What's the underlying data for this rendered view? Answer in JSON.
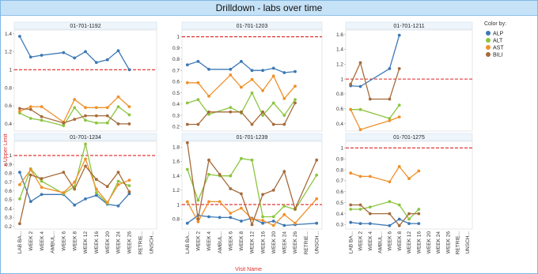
{
  "header": {
    "title": "Drilldown - labs over time"
  },
  "legend": {
    "title": "Color by:",
    "items": [
      {
        "label": "ALP",
        "color": "#3c78b5"
      },
      {
        "label": "ALT",
        "color": "#8cc540"
      },
      {
        "label": "AST",
        "color": "#f0902a"
      },
      {
        "label": "BILI",
        "color": "#a66b3a"
      }
    ]
  },
  "axes": {
    "ylabel": "x Upper Limit",
    "xlabel": "Visit Name"
  },
  "chart_data": {
    "type": "line",
    "categories": [
      "LAB BA...",
      "WEEK 2",
      "WEEK 4",
      "AMBUL...",
      "WEEK 6",
      "WEEK 8",
      "WEEK 12",
      "WEEK 16",
      "WEEK 20",
      "WEEK 24",
      "WEEK 26",
      "RETRIE...",
      "UNSCH..."
    ],
    "reference_line": 1,
    "panels": [
      {
        "title": "01-701-1192",
        "yticks": [
          0.4,
          0.6,
          0.8,
          1,
          1.2,
          1.4
        ],
        "ylim": [
          0.32,
          1.44
        ],
        "series": [
          {
            "name": "ALP",
            "values": [
              1.37,
              1.14,
              1.16,
              null,
              1.19,
              1.13,
              1.2,
              1.08,
              1.11,
              1.21,
              1.0,
              null,
              null
            ]
          },
          {
            "name": "ALT",
            "values": [
              0.52,
              0.46,
              0.44,
              null,
              0.38,
              0.58,
              0.44,
              0.41,
              0.41,
              0.59,
              0.5,
              null,
              null
            ]
          },
          {
            "name": "AST",
            "values": [
              0.54,
              0.59,
              0.59,
              null,
              0.42,
              0.67,
              0.58,
              0.58,
              0.58,
              0.7,
              0.59,
              null,
              null
            ]
          },
          {
            "name": "BILI",
            "values": [
              0.57,
              0.56,
              0.48,
              null,
              0.41,
              0.45,
              0.49,
              0.49,
              0.49,
              0.4,
              0.4,
              null,
              null
            ]
          }
        ]
      },
      {
        "title": "01-701-1203",
        "yticks": [
          0.2,
          0.3,
          0.4,
          0.5,
          0.6,
          0.7,
          0.8,
          0.9,
          1
        ],
        "ylim": [
          0.16,
          1.06
        ],
        "series": [
          {
            "name": "ALP",
            "values": [
              0.75,
              0.78,
              0.71,
              null,
              0.71,
              0.78,
              0.7,
              0.7,
              0.72,
              0.68,
              0.69,
              null,
              null
            ]
          },
          {
            "name": "ALT",
            "values": [
              0.41,
              0.44,
              0.31,
              null,
              0.37,
              0.32,
              0.5,
              0.3,
              0.41,
              0.3,
              0.44,
              null,
              null
            ]
          },
          {
            "name": "AST",
            "values": [
              0.59,
              0.59,
              0.47,
              null,
              0.66,
              0.55,
              0.62,
              0.52,
              0.65,
              0.45,
              0.56,
              null,
              null
            ]
          },
          {
            "name": "BILI",
            "values": [
              0.22,
              0.22,
              0.33,
              null,
              0.33,
              0.33,
              0.22,
              0.33,
              0.22,
              0.22,
              0.41,
              null,
              null
            ]
          }
        ]
      },
      {
        "title": "01-701-1211",
        "yticks": [
          0.4,
          0.6,
          0.8,
          1,
          1.2,
          1.4,
          1.6
        ],
        "ylim": [
          0.3,
          1.66
        ],
        "series": [
          {
            "name": "ALP",
            "values": [
              0.91,
              0.9,
              null,
              null,
              1.14,
              1.59,
              null,
              null,
              null,
              null,
              null,
              null,
              null
            ]
          },
          {
            "name": "ALT",
            "values": [
              0.59,
              0.59,
              null,
              null,
              0.47,
              0.65,
              null,
              null,
              null,
              null,
              null,
              null,
              null
            ]
          },
          {
            "name": "AST",
            "values": [
              0.59,
              0.32,
              null,
              null,
              0.44,
              0.49,
              null,
              null,
              null,
              null,
              null,
              null,
              null
            ]
          },
          {
            "name": "BILI",
            "values": [
              0.93,
              1.22,
              0.73,
              null,
              0.73,
              1.14,
              null,
              null,
              null,
              null,
              null,
              null,
              null
            ]
          }
        ]
      },
      {
        "title": "01-701-1234",
        "yticks": [
          0.2,
          0.3,
          0.4,
          0.5,
          0.6,
          0.7,
          0.8,
          0.9,
          1
        ],
        "ylim": [
          0.17,
          1.16
        ],
        "series": [
          {
            "name": "ALP",
            "values": [
              0.81,
              0.48,
              0.56,
              null,
              0.56,
              0.44,
              0.51,
              0.55,
              0.45,
              0.43,
              0.57,
              null,
              null
            ]
          },
          {
            "name": "ALT",
            "values": [
              0.51,
              0.85,
              0.71,
              null,
              0.57,
              0.65,
              1.13,
              0.58,
              0.46,
              0.71,
              0.66,
              null,
              null
            ]
          },
          {
            "name": "AST",
            "values": [
              0.67,
              0.84,
              0.64,
              null,
              0.58,
              0.7,
              0.96,
              0.62,
              0.47,
              0.67,
              0.72,
              null,
              null
            ]
          },
          {
            "name": "BILI",
            "values": [
              0.23,
              0.78,
              0.74,
              null,
              0.81,
              0.62,
              0.88,
              0.73,
              0.65,
              0.81,
              0.59,
              null,
              null
            ]
          }
        ]
      },
      {
        "title": "01-701-1239",
        "yticks": [
          0.8,
          1,
          1.2,
          1.4,
          1.6,
          1.8
        ],
        "ylim": [
          0.66,
          1.88
        ],
        "series": [
          {
            "name": "ALP",
            "values": [
              0.74,
              0.85,
              0.83,
              0.82,
              0.82,
              0.77,
              0.81,
              0.74,
              0.77,
              0.71,
              0.72,
              null,
              0.74
            ]
          },
          {
            "name": "ALT",
            "values": [
              1.49,
              1.06,
              1.42,
              1.4,
              1.4,
              1.64,
              1.62,
              0.83,
              0.83,
              0.98,
              0.93,
              null,
              1.41
            ]
          },
          {
            "name": "AST",
            "values": [
              1.04,
              0.76,
              1.04,
              1.04,
              0.88,
              0.95,
              0.8,
              0.78,
              0.71,
              0.86,
              0.74,
              null,
              1.08
            ]
          },
          {
            "name": "BILI",
            "values": [
              1.86,
              0.8,
              1.62,
              1.42,
              1.22,
              1.15,
              0.72,
              1.14,
              1.2,
              1.46,
              0.94,
              null,
              1.62
            ]
          }
        ]
      },
      {
        "title": "01-701-1275",
        "yticks": [
          0.3,
          0.4,
          0.5,
          0.6,
          0.7,
          0.8,
          0.9,
          1
        ],
        "ylim": [
          0.26,
          1.06
        ],
        "series": [
          {
            "name": "ALP",
            "values": [
              0.32,
              0.31,
              0.31,
              null,
              0.29,
              0.35,
              0.31,
              0.31,
              null,
              null,
              null,
              null,
              null
            ]
          },
          {
            "name": "ALT",
            "values": [
              0.44,
              0.44,
              0.46,
              null,
              0.51,
              0.48,
              0.35,
              0.44,
              null,
              null,
              null,
              null,
              null
            ]
          },
          {
            "name": "AST",
            "values": [
              0.77,
              0.74,
              0.74,
              null,
              0.69,
              0.83,
              0.72,
              0.79,
              null,
              null,
              null,
              null,
              null
            ]
          },
          {
            "name": "BILI",
            "values": [
              0.48,
              0.48,
              0.4,
              null,
              0.4,
              0.29,
              0.4,
              0.4,
              null,
              null,
              null,
              null,
              null
            ]
          }
        ]
      }
    ]
  }
}
